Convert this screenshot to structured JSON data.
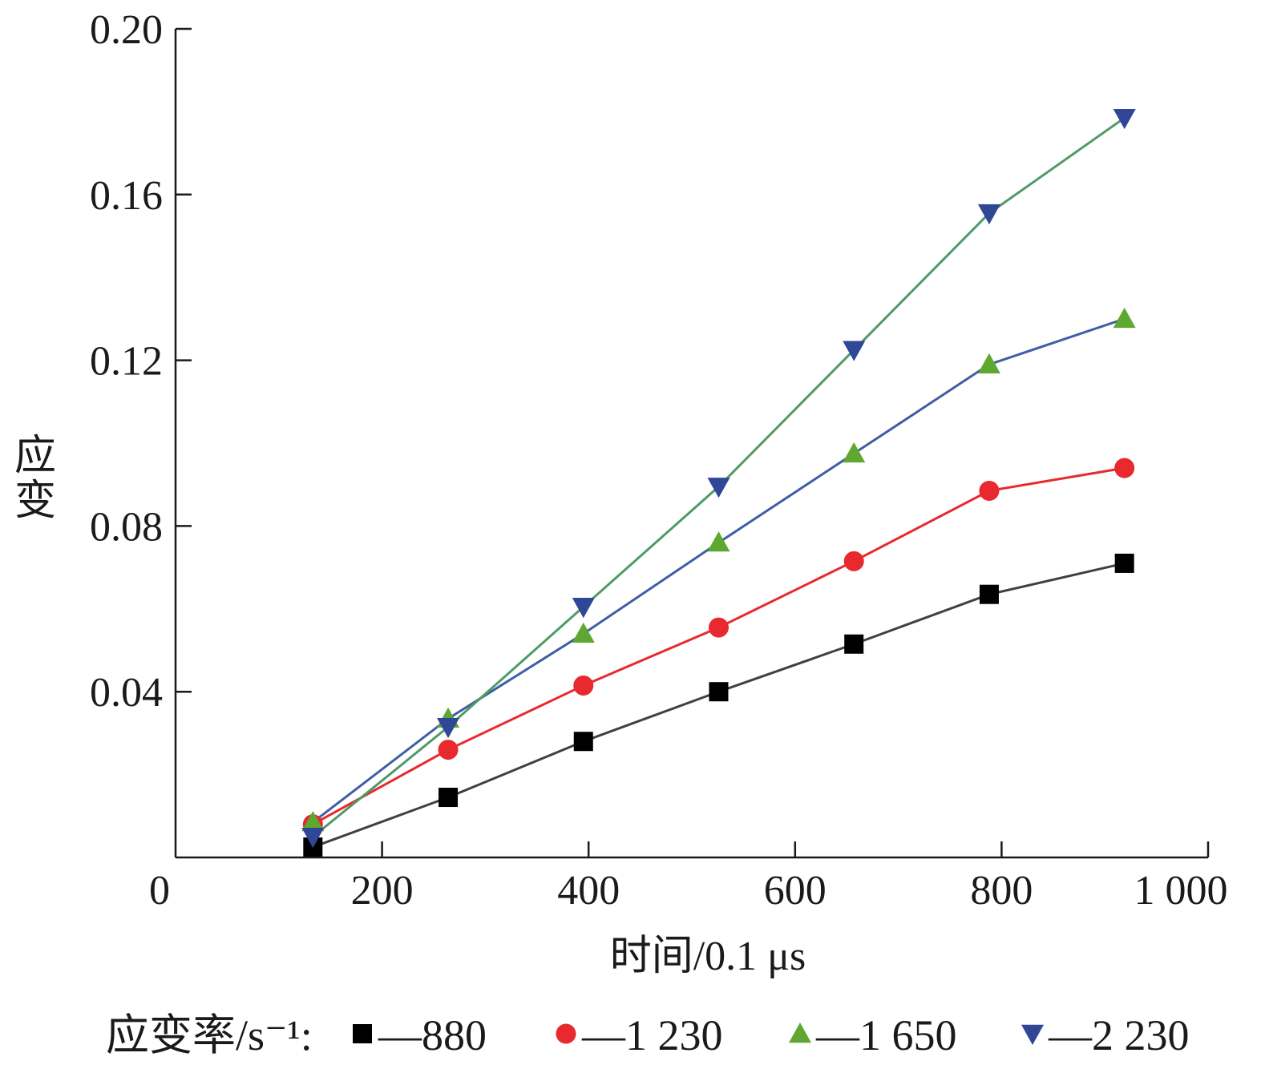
{
  "chart_data": {
    "type": "line",
    "xlabel": "时间/0.1 μs",
    "ylabel": "应变",
    "xlim": [
      0,
      1000
    ],
    "ylim": [
      0,
      0.2
    ],
    "x_ticks": [
      0,
      200,
      400,
      600,
      800,
      1000
    ],
    "x_tick_labels": [
      "0",
      "200",
      "400",
      "600",
      "800",
      "1 000"
    ],
    "y_ticks": [
      0.04,
      0.08,
      0.12,
      0.16,
      0.2
    ],
    "y_tick_labels": [
      "0.04",
      "0.08",
      "0.12",
      "0.16",
      "0.20"
    ],
    "grid": false,
    "legend_position": "bottom",
    "legend_title": "应变率/s⁻¹:",
    "x": [
      133,
      264,
      395,
      526,
      657,
      788,
      919
    ],
    "series": [
      {
        "name": "880",
        "marker": "square",
        "marker_color": "#000000",
        "line_color": "#404040",
        "values": [
          0.0025,
          0.0145,
          0.028,
          0.04,
          0.0515,
          0.0635,
          0.071
        ]
      },
      {
        "name": "1 230",
        "marker": "circle",
        "marker_color": "#e8292e",
        "line_color": "#e8292e",
        "values": [
          0.008,
          0.026,
          0.0415,
          0.0555,
          0.0715,
          0.0885,
          0.094
        ]
      },
      {
        "name": "1 650",
        "marker": "triangle-up",
        "marker_color": "#5ea831",
        "line_color": "#3e5fa3",
        "values": [
          0.0085,
          0.0335,
          0.054,
          0.076,
          0.0975,
          0.119,
          0.13
        ]
      },
      {
        "name": "2 230",
        "marker": "triangle-down",
        "marker_color": "#2f4796",
        "line_color": "#4f9a66",
        "values": [
          0.005,
          0.0315,
          0.0605,
          0.0895,
          0.1225,
          0.1555,
          0.1785
        ]
      }
    ]
  }
}
